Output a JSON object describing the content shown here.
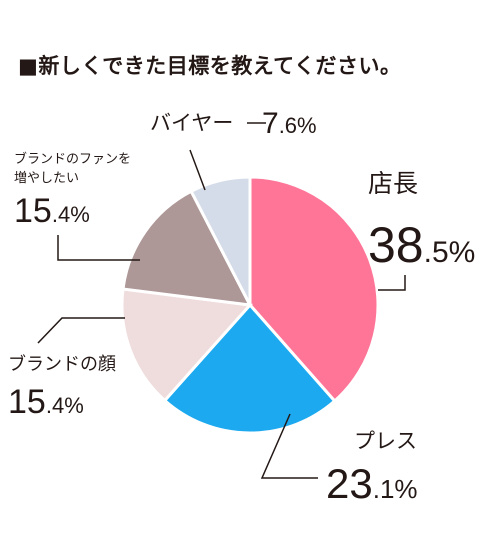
{
  "chart_data": {
    "type": "pie",
    "title": "■新しくできた目標を教えてください。",
    "slices": [
      {
        "label": "店長",
        "value": 38.5,
        "value_text": "38",
        "value_frac": ".5",
        "color": "#ff7597"
      },
      {
        "label": "プレス",
        "value": 23.1,
        "value_text": "23",
        "value_frac": ".1",
        "color": "#1ca9ef"
      },
      {
        "label": "ブランドの顔",
        "value": 15.4,
        "value_text": "15",
        "value_frac": ".4",
        "color": "#efdcdd"
      },
      {
        "label": "ブランドのファンを増やしたい",
        "label_line1": "ブランドのファンを",
        "label_line2": "増やしたい",
        "value": 15.4,
        "value_text": "15",
        "value_frac": ".4",
        "color": "#ad9797"
      },
      {
        "label": "バイヤー",
        "value": 7.6,
        "value_text": "7",
        "value_frac": ".6",
        "color": "#d5dce9"
      }
    ],
    "percent_sign": "%"
  }
}
